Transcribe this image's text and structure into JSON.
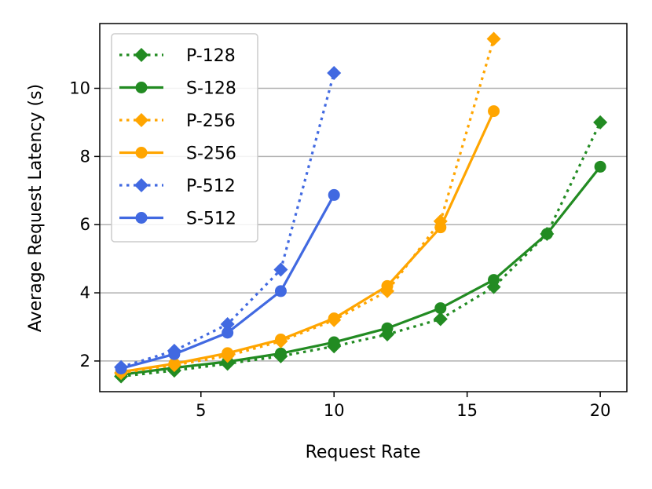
{
  "chart_data": {
    "type": "line",
    "title": "",
    "xlabel": "Request Rate",
    "ylabel": "Average Request Latency (s)",
    "xlim": [
      1.2,
      21.0
    ],
    "ylim": [
      1.1,
      11.9
    ],
    "xticks": [
      5,
      10,
      15,
      20
    ],
    "yticks": [
      2,
      4,
      6,
      8,
      10
    ],
    "grid": "y",
    "legend_position": "top-left",
    "series": [
      {
        "name": "P-128",
        "color": "#228B22",
        "linestyle": "dotted",
        "marker": "diamond",
        "x": [
          2,
          4,
          6,
          8,
          10,
          12,
          14,
          16,
          18,
          20
        ],
        "y": [
          1.55,
          1.72,
          1.92,
          2.14,
          2.43,
          2.78,
          3.23,
          4.17,
          5.73,
          9.0
        ]
      },
      {
        "name": "S-128",
        "color": "#228B22",
        "linestyle": "solid",
        "marker": "circle",
        "x": [
          2,
          4,
          6,
          8,
          10,
          12,
          14,
          16,
          18,
          20
        ],
        "y": [
          1.6,
          1.8,
          1.98,
          2.22,
          2.55,
          2.96,
          3.55,
          4.38,
          5.73,
          7.7
        ]
      },
      {
        "name": "P-256",
        "color": "#FFA500",
        "linestyle": "dotted",
        "marker": "diamond",
        "x": [
          2,
          4,
          6,
          8,
          10,
          12,
          14,
          16
        ],
        "y": [
          1.65,
          1.88,
          2.15,
          2.58,
          3.2,
          4.05,
          6.1,
          11.45
        ]
      },
      {
        "name": "S-256",
        "color": "#FFA500",
        "linestyle": "solid",
        "marker": "circle",
        "x": [
          2,
          4,
          6,
          8,
          10,
          12,
          14,
          16
        ],
        "y": [
          1.68,
          1.92,
          2.23,
          2.63,
          3.25,
          4.2,
          5.92,
          9.33
        ]
      },
      {
        "name": "P-512",
        "color": "#4169E1",
        "linestyle": "dotted",
        "marker": "diamond",
        "x": [
          2,
          4,
          6,
          8,
          10
        ],
        "y": [
          1.82,
          2.3,
          3.08,
          4.68,
          10.45
        ]
      },
      {
        "name": "S-512",
        "color": "#4169E1",
        "linestyle": "solid",
        "marker": "circle",
        "x": [
          2,
          4,
          6,
          8,
          10
        ],
        "y": [
          1.78,
          2.2,
          2.83,
          4.05,
          6.87
        ]
      }
    ]
  }
}
